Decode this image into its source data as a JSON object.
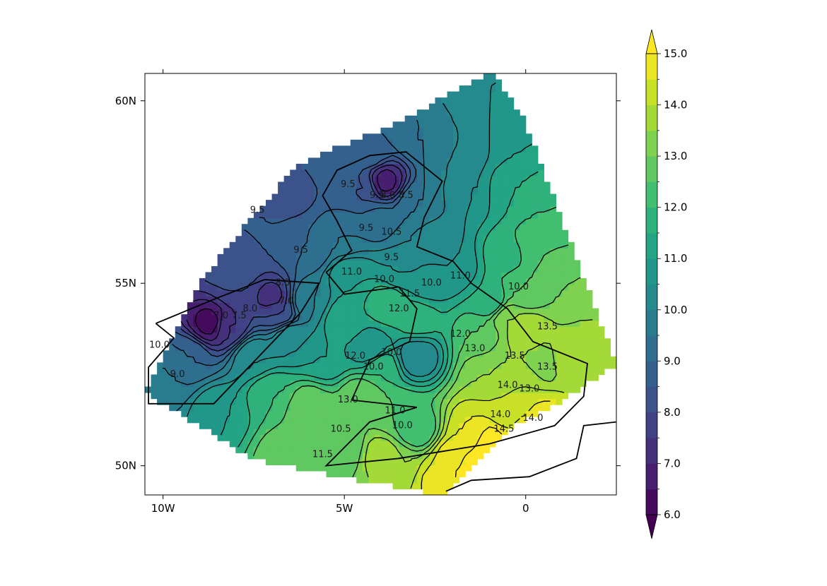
{
  "chart_data": {
    "type": "heatmap",
    "subtype": "filled-contour-map",
    "title": "",
    "xlabel": "",
    "ylabel": "",
    "colormap": "viridis",
    "x_axis": {
      "range": [
        -10.5,
        2.5
      ],
      "ticks": [
        {
          "value": -10,
          "label": "10W"
        },
        {
          "value": -5,
          "label": "5W"
        },
        {
          "value": 0,
          "label": "0"
        }
      ]
    },
    "y_axis": {
      "range": [
        49.2,
        60.75
      ],
      "ticks": [
        {
          "value": 50,
          "label": "50N"
        },
        {
          "value": 55,
          "label": "55N"
        },
        {
          "value": 60,
          "label": "60N"
        }
      ]
    },
    "colorbar": {
      "min": 6.0,
      "max": 15.0,
      "extend": "both",
      "levels_step": 0.5,
      "tick_labels": [
        "6.0",
        "7.0",
        "8.0",
        "9.0",
        "10.0",
        "11.0",
        "12.0",
        "13.0",
        "14.0",
        "15.0"
      ],
      "tick_values": [
        6,
        7,
        8,
        9,
        10,
        11,
        12,
        13,
        14,
        15
      ]
    },
    "field_hull": [
      [
        -10.5,
        52.0
      ],
      [
        -9.0,
        55.0
      ],
      [
        -7.5,
        56.9
      ],
      [
        -6.3,
        58.2
      ],
      [
        -4.8,
        58.9
      ],
      [
        -3.5,
        59.4
      ],
      [
        -1.9,
        60.3
      ],
      [
        -0.9,
        60.75
      ],
      [
        0.0,
        59.4
      ],
      [
        2.5,
        52.8
      ],
      [
        1.0,
        51.8
      ],
      [
        -0.5,
        51.0
      ],
      [
        -2.3,
        49.2
      ],
      [
        -6.2,
        49.9
      ],
      [
        -7.6,
        50.2
      ],
      [
        -9.0,
        51.1
      ]
    ],
    "samples": [
      [
        -8.7,
        53.9,
        6.3
      ],
      [
        -8.2,
        53.8,
        7.5
      ],
      [
        -7.0,
        54.6,
        7.3
      ],
      [
        -6.8,
        54.2,
        8.0
      ],
      [
        -8.0,
        55.0,
        8.0
      ],
      [
        -7.0,
        56.5,
        8.5
      ],
      [
        -9.3,
        53.0,
        9.0
      ],
      [
        -9.8,
        52.5,
        9.5
      ],
      [
        -10.3,
        52.0,
        10.0
      ],
      [
        -5.0,
        57.9,
        8.6
      ],
      [
        -3.9,
        57.8,
        6.8
      ],
      [
        -4.5,
        57.6,
        8.5
      ],
      [
        -6.0,
        56.0,
        9.0
      ],
      [
        -5.0,
        56.3,
        9.5
      ],
      [
        -3.2,
        56.0,
        10.0
      ],
      [
        -3.5,
        55.3,
        10.5
      ],
      [
        -4.8,
        55.2,
        11.0
      ],
      [
        -2.7,
        55.1,
        10.6
      ],
      [
        -2.0,
        55.4,
        10.5
      ],
      [
        -3.8,
        54.5,
        12.0
      ],
      [
        -3.0,
        54.0,
        11.8
      ],
      [
        -4.3,
        53.2,
        10.5
      ],
      [
        -3.0,
        53.0,
        10.0
      ],
      [
        -4.0,
        52.7,
        12.0
      ],
      [
        -4.5,
        51.9,
        13.0
      ],
      [
        -3.5,
        51.4,
        12.5
      ],
      [
        -3.0,
        51.0,
        12.0
      ],
      [
        -5.0,
        50.5,
        12.5
      ],
      [
        -5.5,
        50.4,
        13.0
      ],
      [
        -6.0,
        51.6,
        13.0
      ],
      [
        -7.0,
        52.0,
        12.0
      ],
      [
        -8.5,
        51.5,
        11.0
      ],
      [
        -1.0,
        54.5,
        11.5
      ],
      [
        -1.2,
        53.6,
        12.5
      ],
      [
        -0.5,
        54.0,
        13.5
      ],
      [
        0.0,
        53.7,
        14.0
      ],
      [
        -0.4,
        53.0,
        13.5
      ],
      [
        0.5,
        52.8,
        13.0
      ],
      [
        1.1,
        52.9,
        14.0
      ],
      [
        1.8,
        52.6,
        13.6
      ],
      [
        -1.0,
        52.5,
        13.5
      ],
      [
        0.0,
        52.3,
        14.0
      ],
      [
        -0.5,
        51.5,
        14.0
      ],
      [
        -0.3,
        51.3,
        14.5
      ],
      [
        0.5,
        51.4,
        14.6
      ],
      [
        -1.5,
        51.0,
        14.5
      ],
      [
        -1.0,
        50.7,
        15.3
      ],
      [
        -2.0,
        50.2,
        14.8
      ],
      [
        -2.5,
        49.6,
        14.6
      ],
      [
        -1.5,
        49.9,
        15.4
      ],
      [
        0.5,
        50.8,
        15.0
      ],
      [
        0.0,
        50.9,
        14.8
      ],
      [
        -2.5,
        56.2,
        10.2
      ],
      [
        -1.5,
        57.5,
        10.5
      ],
      [
        -1.5,
        59.0,
        10.0
      ],
      [
        -3.0,
        59.0,
        9.5
      ],
      [
        -1.2,
        60.4,
        10.5
      ],
      [
        -0.5,
        59.0,
        11.0
      ],
      [
        -0.5,
        57.5,
        11.5
      ],
      [
        0.5,
        57.0,
        12.0
      ],
      [
        -0.5,
        55.8,
        11.8
      ],
      [
        0.3,
        56.0,
        12.5
      ],
      [
        1.0,
        55.0,
        13.0
      ],
      [
        0.0,
        54.8,
        12.5
      ],
      [
        1.6,
        54.0,
        13.5
      ],
      [
        2.3,
        53.0,
        13.8
      ],
      [
        -6.5,
        53.5,
        10.5
      ],
      [
        -5.5,
        53.0,
        11.0
      ],
      [
        -6.0,
        54.5,
        10.0
      ],
      [
        -5.0,
        54.0,
        11.5
      ],
      [
        -7.5,
        53.0,
        10.5
      ],
      [
        -8.0,
        55.5,
        8.5
      ],
      [
        -6.5,
        57.5,
        8.2
      ],
      [
        -5.5,
        58.3,
        8.6
      ],
      [
        -4.3,
        58.6,
        9.0
      ],
      [
        -3.0,
        57.2,
        9.5
      ],
      [
        -2.0,
        58.0,
        10.0
      ],
      [
        -4.0,
        56.7,
        9.2
      ],
      [
        -6.5,
        50.3,
        13.0
      ],
      [
        -4.0,
        50.3,
        13.8
      ],
      [
        -3.5,
        50.0,
        13.5
      ]
    ],
    "contour_labels": [
      {
        "text": "9.5",
        "x": -7.4,
        "y": 57.0
      },
      {
        "text": "9.5",
        "x": -6.2,
        "y": 55.9
      },
      {
        "text": "9.5",
        "x": -4.9,
        "y": 57.7
      },
      {
        "text": "9.5",
        "x": -4.4,
        "y": 56.5
      },
      {
        "text": "9.5",
        "x": -3.7,
        "y": 55.7
      },
      {
        "text": "9.5",
        "x": -4.1,
        "y": 57.4
      },
      {
        "text": "8.5",
        "x": -3.3,
        "y": 57.4
      },
      {
        "text": "8.0",
        "x": -3.8,
        "y": 57.4
      },
      {
        "text": "10.5",
        "x": -3.7,
        "y": 56.4
      },
      {
        "text": "10.0",
        "x": -3.9,
        "y": 55.1
      },
      {
        "text": "10.0",
        "x": -2.6,
        "y": 55.0
      },
      {
        "text": "11.0",
        "x": -4.8,
        "y": 55.3
      },
      {
        "text": "11.0",
        "x": -1.8,
        "y": 55.2
      },
      {
        "text": "11.5",
        "x": -3.2,
        "y": 54.7
      },
      {
        "text": "12.0",
        "x": -3.5,
        "y": 54.3
      },
      {
        "text": "12.0",
        "x": -1.8,
        "y": 53.6
      },
      {
        "text": "12.0",
        "x": -4.7,
        "y": 53.0
      },
      {
        "text": "10.0",
        "x": -4.2,
        "y": 52.7
      },
      {
        "text": "10.0",
        "x": -3.7,
        "y": 53.1
      },
      {
        "text": "13.0",
        "x": -1.4,
        "y": 53.2
      },
      {
        "text": "13.0",
        "x": 0.1,
        "y": 52.1
      },
      {
        "text": "13.5",
        "x": -0.3,
        "y": 53.0
      },
      {
        "text": "13.5",
        "x": 0.6,
        "y": 52.7
      },
      {
        "text": "14.0",
        "x": -0.5,
        "y": 52.2
      },
      {
        "text": "14.0",
        "x": -0.7,
        "y": 51.4
      },
      {
        "text": "14.5",
        "x": -0.6,
        "y": 51.0
      },
      {
        "text": "13.0",
        "x": -4.9,
        "y": 51.8
      },
      {
        "text": "11.0",
        "x": -3.6,
        "y": 51.5
      },
      {
        "text": "10.0",
        "x": -3.4,
        "y": 51.1
      },
      {
        "text": "10.5",
        "x": -5.1,
        "y": 51.0
      },
      {
        "text": "11.5",
        "x": -5.6,
        "y": 50.3
      },
      {
        "text": "8.0",
        "x": -6.7,
        "y": 55.0
      },
      {
        "text": "8.0",
        "x": -7.6,
        "y": 54.3
      },
      {
        "text": "7.0",
        "x": -6.6,
        "y": 54.5
      },
      {
        "text": "7.0",
        "x": -8.4,
        "y": 54.1
      },
      {
        "text": "7.5",
        "x": -7.9,
        "y": 54.1
      },
      {
        "text": "9.0",
        "x": -9.6,
        "y": 52.5
      },
      {
        "text": "10.0",
        "x": -10.1,
        "y": 53.3
      },
      {
        "text": "13.5",
        "x": 0.6,
        "y": 53.8
      },
      {
        "text": "14.0",
        "x": 0.2,
        "y": 51.3
      },
      {
        "text": "10.0",
        "x": -0.2,
        "y": 54.9
      }
    ],
    "coastline": [
      [
        [
          -10.2,
          53.9
        ],
        [
          -8.5,
          54.6
        ],
        [
          -7.2,
          55.1
        ],
        [
          -5.7,
          55.0
        ],
        [
          -6.2,
          54.2
        ],
        [
          -8.6,
          51.7
        ],
        [
          -10.4,
          51.7
        ],
        [
          -10.4,
          52.7
        ],
        [
          -9.7,
          53.5
        ],
        [
          -10.2,
          53.9
        ]
      ],
      [
        [
          -5.5,
          55.3
        ],
        [
          -4.8,
          55.9
        ],
        [
          -5.2,
          56.7
        ],
        [
          -5.6,
          57.4
        ],
        [
          -5.2,
          58.1
        ],
        [
          -4.3,
          58.5
        ],
        [
          -3.3,
          58.6
        ],
        [
          -2.3,
          57.8
        ],
        [
          -2.8,
          56.8
        ],
        [
          -3.0,
          56.0
        ],
        [
          -2.0,
          55.6
        ],
        [
          -1.5,
          55.0
        ],
        [
          -0.5,
          54.3
        ],
        [
          0.2,
          53.4
        ],
        [
          1.7,
          52.8
        ],
        [
          1.6,
          51.9
        ],
        [
          0.8,
          51.1
        ],
        [
          -1.0,
          50.6
        ],
        [
          -3.5,
          50.2
        ],
        [
          -5.5,
          50.0
        ],
        [
          -4.3,
          51.2
        ],
        [
          -3.0,
          51.6
        ],
        [
          -4.8,
          51.8
        ],
        [
          -4.3,
          52.9
        ],
        [
          -3.2,
          53.4
        ],
        [
          -3.0,
          54.3
        ],
        [
          -3.5,
          54.9
        ],
        [
          -5.0,
          54.7
        ],
        [
          -5.5,
          55.3
        ]
      ],
      [
        [
          -2.2,
          49.3
        ],
        [
          -1.5,
          49.6
        ],
        [
          0.1,
          49.7
        ],
        [
          1.4,
          50.2
        ],
        [
          1.6,
          51.1
        ],
        [
          2.5,
          51.2
        ]
      ]
    ]
  }
}
